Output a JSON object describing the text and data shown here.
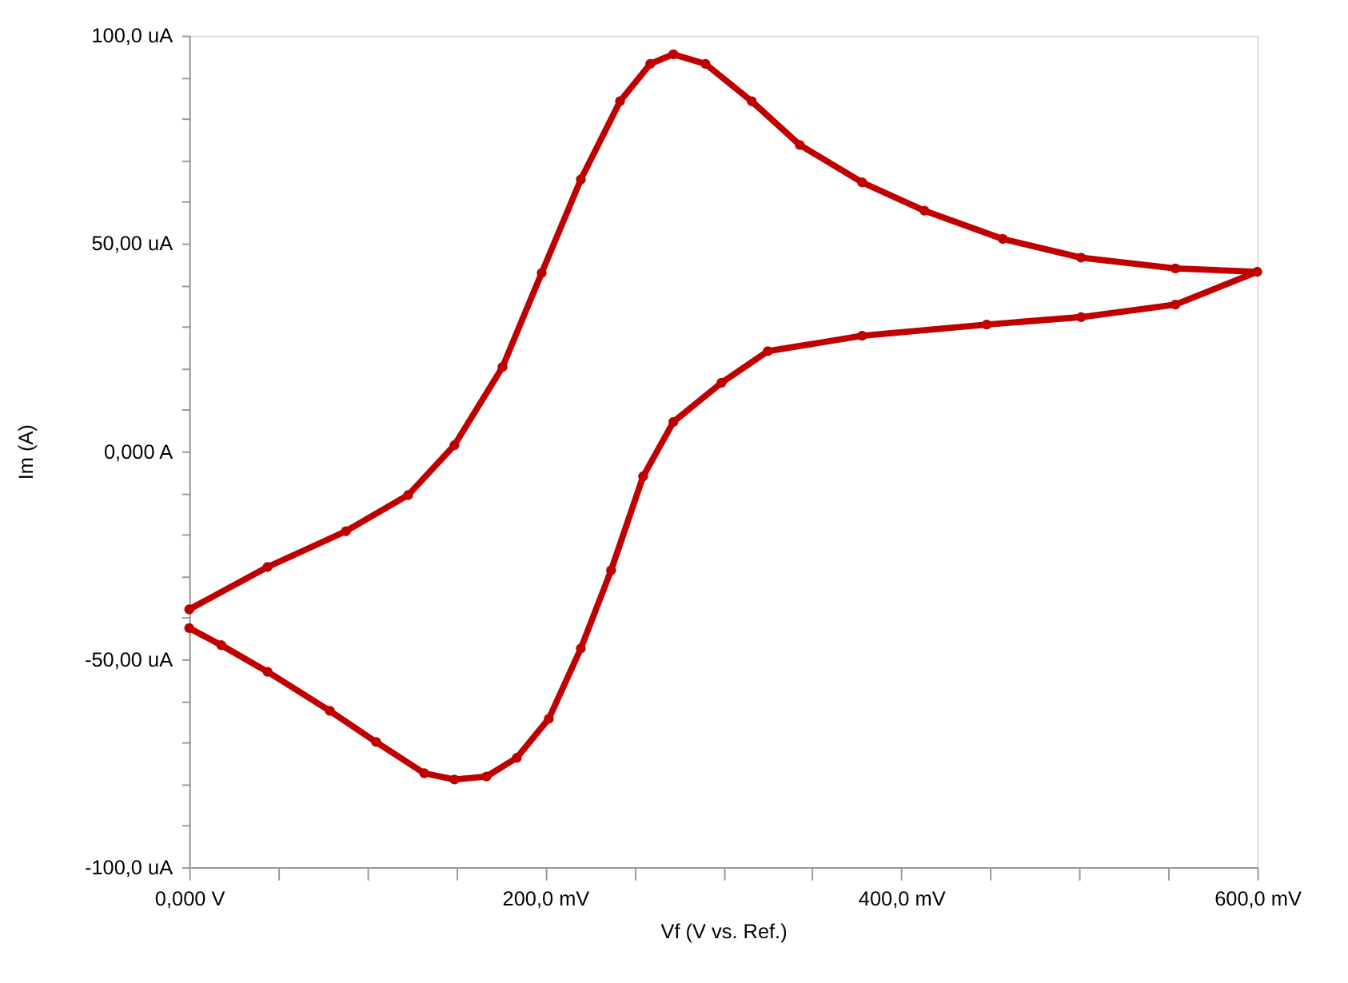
{
  "chart_data": {
    "type": "line",
    "xlabel": "Vf (V vs. Ref.)",
    "ylabel": "Im (A)",
    "marker": "circle",
    "line_style": "solid",
    "grid": false,
    "xlim": [
      0,
      600
    ],
    "ylim": [
      -100,
      100
    ],
    "xticks": [
      {
        "value": 0,
        "label": "0,000 V"
      },
      {
        "value": 50,
        "label": null
      },
      {
        "value": 100,
        "label": null
      },
      {
        "value": 150,
        "label": null
      },
      {
        "value": 200,
        "label": "200,0 mV"
      },
      {
        "value": 250,
        "label": null
      },
      {
        "value": 300,
        "label": null
      },
      {
        "value": 350,
        "label": null
      },
      {
        "value": 400,
        "label": "400,0 mV"
      },
      {
        "value": 450,
        "label": null
      },
      {
        "value": 500,
        "label": null
      },
      {
        "value": 550,
        "label": null
      },
      {
        "value": 600,
        "label": "600,0 mV"
      }
    ],
    "yticks": [
      {
        "value": -100,
        "label": "-100,0 uA"
      },
      {
        "value": -90,
        "label": null
      },
      {
        "value": -80,
        "label": null
      },
      {
        "value": -70,
        "label": null
      },
      {
        "value": -60,
        "label": null
      },
      {
        "value": -50,
        "label": "-50,00 uA"
      },
      {
        "value": -40,
        "label": null
      },
      {
        "value": -30,
        "label": null
      },
      {
        "value": -20,
        "label": null
      },
      {
        "value": -10,
        "label": null
      },
      {
        "value": 0,
        "label": "0,000 A"
      },
      {
        "value": 10,
        "label": null
      },
      {
        "value": 20,
        "label": null
      },
      {
        "value": 30,
        "label": null
      },
      {
        "value": 40,
        "label": null
      },
      {
        "value": 50,
        "label": "50,00 uA"
      },
      {
        "value": 60,
        "label": null
      },
      {
        "value": 70,
        "label": null
      },
      {
        "value": 80,
        "label": null
      },
      {
        "value": 90,
        "label": null
      },
      {
        "value": 100,
        "label": "100,0 uA"
      }
    ],
    "series": [
      {
        "color": "#c00000",
        "x": [
          0,
          44,
          88,
          123,
          149,
          176,
          198,
          220,
          242,
          259,
          272,
          290,
          316,
          343,
          378,
          413,
          457,
          501,
          554,
          600,
          554,
          501,
          448,
          378,
          325,
          299,
          272,
          255,
          237,
          220,
          202,
          184,
          167,
          149,
          132,
          105,
          79,
          44,
          18,
          0
        ],
        "values": [
          -38,
          -27.8,
          -19.2,
          -10.5,
          1.5,
          20.3,
          42.9,
          65.4,
          84.2,
          93.2,
          95.5,
          93.2,
          84.2,
          73.7,
          64.7,
          57.9,
          51.1,
          46.6,
          44,
          43.2,
          35.3,
          32.3,
          30.5,
          27.8,
          24.1,
          16.5,
          7.1,
          -6,
          -28.6,
          -47.4,
          -64.3,
          -73.7,
          -78.2,
          -78.9,
          -77.4,
          -69.9,
          -62.4,
          -53,
          -46.6,
          -42.5
        ]
      }
    ]
  }
}
